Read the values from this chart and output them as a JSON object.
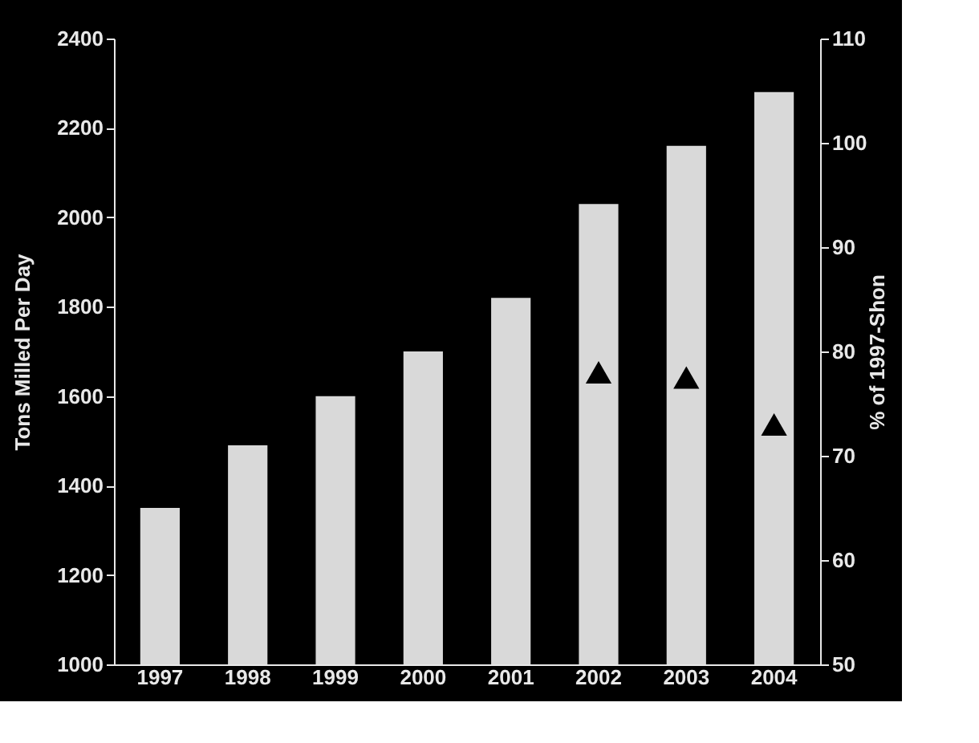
{
  "chart_data": {
    "type": "bar",
    "categories": [
      "1997",
      "1998",
      "1999",
      "2000",
      "2001",
      "2002",
      "2003",
      "2004"
    ],
    "series": [
      {
        "color": "#d9d9d9",
        "values": [
          1350,
          1490,
          1600,
          1700,
          1820,
          2030,
          2160,
          2280
        ]
      },
      {
        "type": "scatter",
        "axis": "y2",
        "color": "#000000",
        "marker": "triangle",
        "values": [
          null,
          null,
          null,
          null,
          null,
          78,
          77.5,
          73
        ]
      }
    ],
    "ylabel": "Tons Milled Per Day",
    "y2label": "% of 1997-Shon",
    "ylim": [
      1000,
      2400
    ],
    "yticks": [
      1000,
      1200,
      1400,
      1600,
      1800,
      2000,
      2200,
      2400
    ],
    "y2lim": [
      50,
      110
    ],
    "y2ticks": [
      50,
      60,
      70,
      80,
      90,
      100,
      110
    ]
  }
}
